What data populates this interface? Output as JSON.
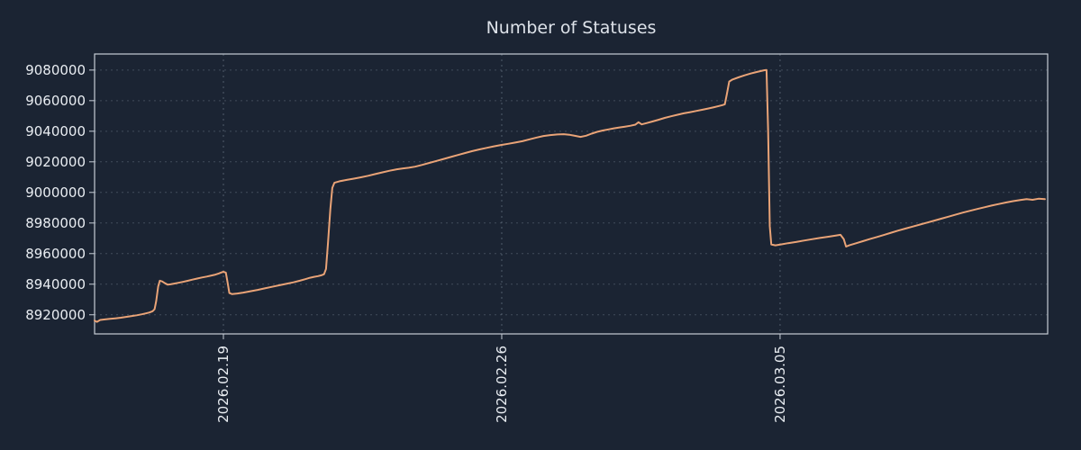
{
  "figure": {
    "title": "Number of Statuses"
  },
  "colors": {
    "background": "#1b2433",
    "line": "#e9a377",
    "axis": "#c6cdd6",
    "grid": "#93a1b0",
    "text": "#e9edf2",
    "title_text": "#dde2e9"
  },
  "chart_data": {
    "type": "line",
    "title": "Number of Statuses",
    "xlabel": "",
    "ylabel": "",
    "legend": "none",
    "grid": {
      "visible": true,
      "style": "dashed"
    },
    "x_axis": {
      "unit": "date",
      "tick_labels": [
        "2026.02.19",
        "2026.02.26",
        "2026.03.05"
      ],
      "tick_positions_days": [
        0,
        7,
        14
      ],
      "range_days": [
        -3.24,
        20.73
      ],
      "labels_rotated_90": true
    },
    "y_axis": {
      "tick_values": [
        8920000,
        8940000,
        8960000,
        8980000,
        9000000,
        9020000,
        9040000,
        9060000,
        9080000
      ],
      "range": [
        8907500,
        9090500
      ]
    },
    "series": [
      {
        "name": "Number of Statuses",
        "color": "#e9a377",
        "points_days_value": [
          [
            -3.24,
            8916200
          ],
          [
            -3.18,
            8915400
          ],
          [
            -3.1,
            8916600
          ],
          [
            -2.98,
            8917000
          ],
          [
            -2.85,
            8917300
          ],
          [
            -2.72,
            8917700
          ],
          [
            -2.58,
            8918100
          ],
          [
            -2.45,
            8918600
          ],
          [
            -2.32,
            8919100
          ],
          [
            -2.18,
            8919700
          ],
          [
            -2.05,
            8920300
          ],
          [
            -1.95,
            8920900
          ],
          [
            -1.86,
            8921500
          ],
          [
            -1.78,
            8922300
          ],
          [
            -1.73,
            8923600
          ],
          [
            -1.69,
            8929000
          ],
          [
            -1.64,
            8938500
          ],
          [
            -1.6,
            8942300
          ],
          [
            -1.54,
            8941800
          ],
          [
            -1.47,
            8940600
          ],
          [
            -1.4,
            8939700
          ],
          [
            -1.33,
            8939900
          ],
          [
            -1.24,
            8940400
          ],
          [
            -1.13,
            8940900
          ],
          [
            -1.02,
            8941500
          ],
          [
            -0.9,
            8942200
          ],
          [
            -0.78,
            8943000
          ],
          [
            -0.66,
            8943700
          ],
          [
            -0.54,
            8944400
          ],
          [
            -0.42,
            8945000
          ],
          [
            -0.3,
            8945700
          ],
          [
            -0.2,
            8946300
          ],
          [
            -0.12,
            8947000
          ],
          [
            -0.05,
            8947700
          ],
          [
            0.0,
            8948100
          ],
          [
            0.06,
            8947600
          ],
          [
            0.1,
            8942000
          ],
          [
            0.15,
            8934200
          ],
          [
            0.22,
            8933500
          ],
          [
            0.35,
            8933900
          ],
          [
            0.5,
            8934500
          ],
          [
            0.68,
            8935400
          ],
          [
            0.86,
            8936300
          ],
          [
            1.04,
            8937300
          ],
          [
            1.22,
            8938300
          ],
          [
            1.4,
            8939300
          ],
          [
            1.58,
            8940200
          ],
          [
            1.76,
            8941200
          ],
          [
            1.92,
            8942300
          ],
          [
            2.06,
            8943300
          ],
          [
            2.18,
            8944200
          ],
          [
            2.28,
            8944800
          ],
          [
            2.38,
            8945300
          ],
          [
            2.46,
            8945800
          ],
          [
            2.53,
            8946500
          ],
          [
            2.58,
            8950000
          ],
          [
            2.63,
            8967000
          ],
          [
            2.69,
            8989000
          ],
          [
            2.74,
            9003000
          ],
          [
            2.79,
            9006300
          ],
          [
            2.92,
            9007300
          ],
          [
            3.1,
            9008200
          ],
          [
            3.28,
            9009000
          ],
          [
            3.46,
            9009900
          ],
          [
            3.64,
            9010900
          ],
          [
            3.82,
            9012000
          ],
          [
            4.0,
            9013100
          ],
          [
            4.18,
            9014200
          ],
          [
            4.36,
            9015100
          ],
          [
            4.52,
            9015700
          ],
          [
            4.66,
            9016100
          ],
          [
            4.82,
            9016800
          ],
          [
            5.0,
            9018000
          ],
          [
            5.18,
            9019300
          ],
          [
            5.36,
            9020600
          ],
          [
            5.54,
            9021900
          ],
          [
            5.72,
            9023200
          ],
          [
            5.9,
            9024500
          ],
          [
            6.08,
            9025800
          ],
          [
            6.26,
            9027000
          ],
          [
            6.44,
            9028100
          ],
          [
            6.62,
            9029100
          ],
          [
            6.8,
            9030100
          ],
          [
            6.98,
            9031000
          ],
          [
            7.16,
            9031800
          ],
          [
            7.34,
            9032600
          ],
          [
            7.52,
            9033500
          ],
          [
            7.7,
            9034700
          ],
          [
            7.88,
            9035900
          ],
          [
            8.05,
            9036900
          ],
          [
            8.22,
            9037500
          ],
          [
            8.4,
            9037900
          ],
          [
            8.56,
            9038100
          ],
          [
            8.7,
            9037700
          ],
          [
            8.84,
            9037000
          ],
          [
            8.98,
            9036300
          ],
          [
            9.12,
            9037100
          ],
          [
            9.26,
            9038400
          ],
          [
            9.4,
            9039600
          ],
          [
            9.54,
            9040500
          ],
          [
            9.68,
            9041200
          ],
          [
            9.82,
            9041900
          ],
          [
            9.96,
            9042500
          ],
          [
            10.1,
            9043000
          ],
          [
            10.24,
            9043600
          ],
          [
            10.36,
            9044300
          ],
          [
            10.44,
            9045900
          ],
          [
            10.52,
            9044500
          ],
          [
            10.64,
            9045300
          ],
          [
            10.78,
            9046300
          ],
          [
            10.94,
            9047500
          ],
          [
            11.1,
            9048700
          ],
          [
            11.26,
            9049800
          ],
          [
            11.42,
            9050800
          ],
          [
            11.58,
            9051700
          ],
          [
            11.74,
            9052500
          ],
          [
            11.9,
            9053300
          ],
          [
            12.05,
            9054100
          ],
          [
            12.2,
            9054900
          ],
          [
            12.34,
            9055700
          ],
          [
            12.46,
            9056500
          ],
          [
            12.55,
            9057100
          ],
          [
            12.61,
            9057600
          ],
          [
            12.66,
            9064000
          ],
          [
            12.72,
            9072500
          ],
          [
            12.8,
            9073800
          ],
          [
            12.95,
            9075200
          ],
          [
            13.1,
            9076500
          ],
          [
            13.25,
            9077700
          ],
          [
            13.4,
            9078700
          ],
          [
            13.52,
            9079400
          ],
          [
            13.61,
            9079900
          ],
          [
            13.66,
            9080000
          ],
          [
            13.7,
            9040000
          ],
          [
            13.74,
            8978000
          ],
          [
            13.78,
            8966000
          ],
          [
            13.88,
            8965400
          ],
          [
            14.02,
            8966000
          ],
          [
            14.2,
            8966800
          ],
          [
            14.4,
            8967600
          ],
          [
            14.6,
            8968500
          ],
          [
            14.8,
            8969400
          ],
          [
            15.0,
            8970200
          ],
          [
            15.2,
            8971000
          ],
          [
            15.4,
            8971800
          ],
          [
            15.52,
            8972300
          ],
          [
            15.6,
            8969500
          ],
          [
            15.66,
            8964600
          ],
          [
            15.74,
            8965400
          ],
          [
            15.9,
            8966700
          ],
          [
            16.08,
            8968100
          ],
          [
            16.26,
            8969500
          ],
          [
            16.44,
            8970900
          ],
          [
            16.62,
            8972300
          ],
          [
            16.8,
            8973700
          ],
          [
            16.98,
            8975100
          ],
          [
            17.16,
            8976400
          ],
          [
            17.34,
            8977700
          ],
          [
            17.52,
            8979000
          ],
          [
            17.7,
            8980300
          ],
          [
            17.88,
            8981600
          ],
          [
            18.06,
            8982900
          ],
          [
            18.24,
            8984200
          ],
          [
            18.42,
            8985500
          ],
          [
            18.6,
            8986800
          ],
          [
            18.78,
            8988000
          ],
          [
            18.96,
            8989200
          ],
          [
            19.14,
            8990300
          ],
          [
            19.32,
            8991400
          ],
          [
            19.5,
            8992400
          ],
          [
            19.68,
            8993400
          ],
          [
            19.86,
            8994300
          ],
          [
            20.04,
            8995000
          ],
          [
            20.2,
            8995600
          ],
          [
            20.35,
            8995200
          ],
          [
            20.5,
            8995900
          ],
          [
            20.66,
            8995600
          ]
        ]
      }
    ]
  }
}
